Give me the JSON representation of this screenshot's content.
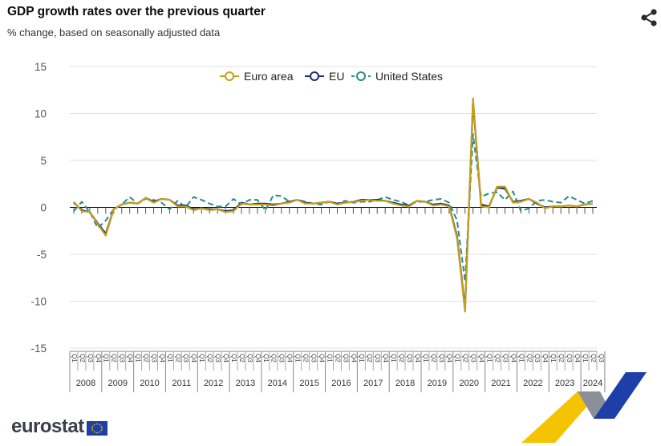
{
  "header": {
    "title": "GDP growth rates over the previous quarter",
    "subtitle": "% change, based on seasonally adjusted data"
  },
  "branding": {
    "logo_text": "eurostat"
  },
  "icons": {
    "share": "share-icon",
    "flag": "eu-flag-icon"
  },
  "colors": {
    "euro_area": "#c4a01a",
    "eu": "#1e2e78",
    "us": "#2a8a8a",
    "grid": "#e2e2e2",
    "axis": "#000000"
  },
  "chart_data": {
    "type": "line",
    "title": "GDP growth rates over the previous quarter",
    "subtitle": "% change, based on seasonally adjusted data",
    "ylim": [
      -15,
      15
    ],
    "yticks": [
      "15",
      "10",
      "5",
      "0",
      "-5",
      "-10",
      "-15"
    ],
    "ytick_values": [
      15,
      10,
      5,
      0,
      -5,
      -10,
      -15
    ],
    "grid": true,
    "legend_position": "top-center",
    "quarter_labels": [
      "Q1",
      "Q2",
      "Q3",
      "Q4"
    ],
    "years": [
      "2008",
      "2009",
      "2010",
      "2011",
      "2012",
      "2013",
      "2014",
      "2015",
      "2016",
      "2017",
      "2018",
      "2019",
      "2020",
      "2021",
      "2022",
      "2023",
      "2024"
    ],
    "last_year_quarters": 3,
    "series": [
      {
        "name": "Euro area",
        "style": "solid",
        "color": "#c4a01a",
        "values": [
          0.6,
          -0.4,
          -0.5,
          -1.8,
          -3.0,
          -0.2,
          0.3,
          0.5,
          0.4,
          1.0,
          0.5,
          0.9,
          0.8,
          0.1,
          0.1,
          -0.3,
          -0.1,
          -0.3,
          -0.2,
          -0.5,
          -0.4,
          0.4,
          0.3,
          0.3,
          0.3,
          0.2,
          0.4,
          0.5,
          0.8,
          0.4,
          0.4,
          0.5,
          0.6,
          0.3,
          0.5,
          0.6,
          0.7,
          0.8,
          0.7,
          0.7,
          0.4,
          0.2,
          0.1,
          0.7,
          0.6,
          0.2,
          0.3,
          0.1,
          -3.3,
          -11.1,
          11.6,
          0.1,
          0.0,
          2.2,
          2.2,
          0.5,
          0.6,
          0.9,
          0.5,
          -0.1,
          0.1,
          0.1,
          0.2,
          0.1,
          0.3,
          0.4
        ]
      },
      {
        "name": "EU",
        "style": "solid",
        "color": "#1e2e78",
        "values": [
          0.5,
          -0.3,
          -0.5,
          -1.7,
          -2.8,
          -0.2,
          0.3,
          0.5,
          0.4,
          1.0,
          0.6,
          0.9,
          0.8,
          0.2,
          0.2,
          -0.2,
          -0.1,
          -0.2,
          -0.2,
          -0.4,
          -0.3,
          0.5,
          0.3,
          0.4,
          0.4,
          0.3,
          0.4,
          0.6,
          0.8,
          0.5,
          0.4,
          0.5,
          0.6,
          0.4,
          0.5,
          0.6,
          0.8,
          0.8,
          0.8,
          0.7,
          0.5,
          0.3,
          0.2,
          0.7,
          0.6,
          0.3,
          0.4,
          0.2,
          -3.1,
          -10.8,
          11.3,
          0.3,
          0.1,
          2.1,
          2.0,
          0.6,
          0.7,
          0.9,
          0.4,
          0.0,
          0.1,
          0.1,
          0.2,
          0.1,
          0.3,
          0.4
        ]
      },
      {
        "name": "United States",
        "style": "dashed",
        "color": "#2a8a8a",
        "values": [
          -0.4,
          0.6,
          -0.5,
          -2.2,
          -1.4,
          -0.2,
          0.3,
          1.1,
          0.4,
          0.9,
          0.8,
          0.5,
          -0.2,
          0.7,
          0.0,
          1.1,
          0.8,
          0.4,
          0.1,
          0.1,
          0.9,
          0.3,
          0.8,
          0.8,
          -0.3,
          1.3,
          1.2,
          0.6,
          0.8,
          0.6,
          0.4,
          0.3,
          0.6,
          0.4,
          0.7,
          0.5,
          0.6,
          0.6,
          0.8,
          1.1,
          0.8,
          0.6,
          0.2,
          0.6,
          0.6,
          0.8,
          0.9,
          0.5,
          -1.4,
          -7.9,
          7.8,
          1.1,
          1.5,
          1.6,
          0.8,
          1.7,
          -0.4,
          -0.1,
          0.7,
          0.8,
          0.6,
          0.5,
          1.2,
          0.8,
          0.4,
          0.7
        ]
      }
    ]
  }
}
